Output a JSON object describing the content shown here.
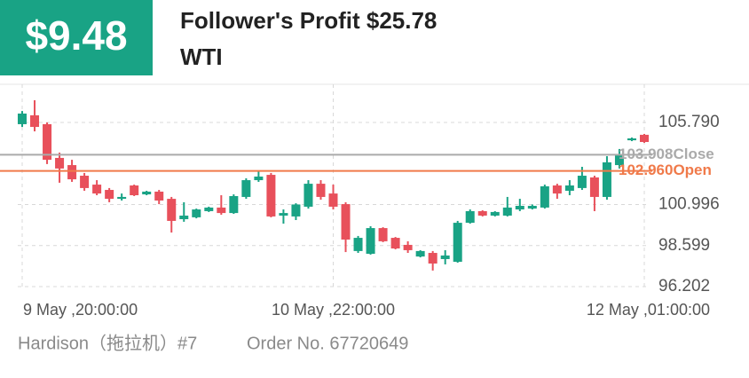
{
  "header": {
    "profit_badge": "$9.48",
    "title": "Follower's Profit $25.78",
    "symbol": "WTI"
  },
  "chart_data": {
    "type": "candlestick",
    "categories": [
      "9 May ,20:00:00",
      null,
      null,
      null,
      null,
      null,
      null,
      null,
      null,
      null,
      null,
      null,
      null,
      null,
      null,
      null,
      null,
      null,
      null,
      null,
      null,
      null,
      null,
      null,
      null,
      "10 May ,22:00:00",
      null,
      null,
      null,
      null,
      null,
      null,
      null,
      null,
      null,
      null,
      null,
      null,
      null,
      null,
      null,
      null,
      null,
      null,
      null,
      null,
      null,
      null,
      null,
      null,
      "12 May ,01:00:00"
    ],
    "open": [
      105.69,
      106.21,
      105.69,
      103.72,
      103.3,
      102.68,
      102.16,
      101.85,
      101.33,
      102.11,
      101.59,
      101.75,
      101.33,
      100.14,
      100.25,
      100.61,
      100.82,
      100.5,
      101.44,
      102.42,
      102.73,
      100.35,
      100.3,
      100.87,
      102.21,
      101.64,
      101.02,
      98.28,
      98.12,
      99.62,
      99.05,
      98.64,
      97.96,
      98.17,
      97.81,
      97.65,
      99.93,
      100.61,
      100.35,
      100.35,
      100.71,
      100.76,
      100.82,
      102.11,
      101.8,
      101.96,
      102.58,
      101.44,
      103.3,
      104.75,
      105.07
    ],
    "high": [
      106.46,
      107.09,
      105.79,
      104.03,
      103.61,
      102.84,
      102.42,
      101.96,
      101.64,
      102.16,
      101.8,
      101.85,
      101.44,
      101.13,
      100.76,
      100.87,
      101.54,
      101.59,
      102.53,
      102.99,
      102.84,
      100.71,
      101.07,
      102.42,
      102.42,
      102.16,
      101.13,
      99.16,
      99.73,
      99.67,
      99.1,
      98.85,
      98.33,
      98.28,
      98.33,
      100.04,
      100.71,
      100.66,
      100.61,
      101.44,
      101.33,
      101.0,
      102.16,
      102.21,
      102.42,
      103.2,
      102.68,
      103.82,
      104.24,
      104.91,
      105.12
    ],
    "low": [
      105.53,
      105.27,
      103.36,
      102.27,
      102.32,
      101.8,
      101.54,
      101.13,
      101.23,
      101.49,
      101.54,
      101.02,
      99.36,
      99.99,
      100.19,
      100.56,
      100.4,
      100.45,
      101.33,
      102.32,
      100.25,
      99.88,
      100.09,
      100.76,
      101.28,
      100.71,
      98.22,
      98.17,
      98.07,
      98.8,
      98.38,
      98.17,
      97.91,
      97.14,
      97.5,
      97.6,
      99.88,
      100.3,
      100.3,
      100.3,
      100.61,
      100.71,
      100.76,
      101.33,
      101.54,
      101.85,
      100.61,
      101.28,
      103.1,
      104.7,
      104.6
    ],
    "close": [
      106.31,
      105.53,
      103.61,
      103.1,
      102.47,
      101.96,
      101.64,
      101.33,
      101.44,
      101.54,
      101.75,
      101.23,
      100.04,
      100.35,
      100.71,
      100.82,
      100.5,
      101.49,
      102.42,
      102.63,
      100.3,
      100.5,
      101.0,
      102.21,
      101.44,
      100.87,
      98.95,
      99.05,
      99.62,
      98.85,
      98.43,
      98.33,
      98.28,
      97.55,
      98.02,
      99.93,
      100.61,
      100.35,
      100.56,
      100.82,
      100.92,
      100.92,
      102.06,
      101.64,
      102.11,
      102.68,
      101.44,
      103.46,
      103.91,
      104.86,
      104.65
    ],
    "up_color": "#19a385",
    "down_color": "#e8505b",
    "ylim": [
      96.202,
      108.02
    ],
    "yticks": [
      {
        "value": 105.79,
        "label": "105.790"
      },
      100.996,
      98.599,
      96.202
    ],
    "grid": true,
    "reference_lines": [
      {
        "value": 103.908,
        "label": "103.908Close",
        "color": "#aaaaaa"
      },
      {
        "value": 102.96,
        "label": "102.960Open",
        "color": "#f07a4a"
      }
    ]
  },
  "footer": {
    "trader": "Hardison（拖拉机）#7",
    "order": "Order No. 67720649"
  }
}
